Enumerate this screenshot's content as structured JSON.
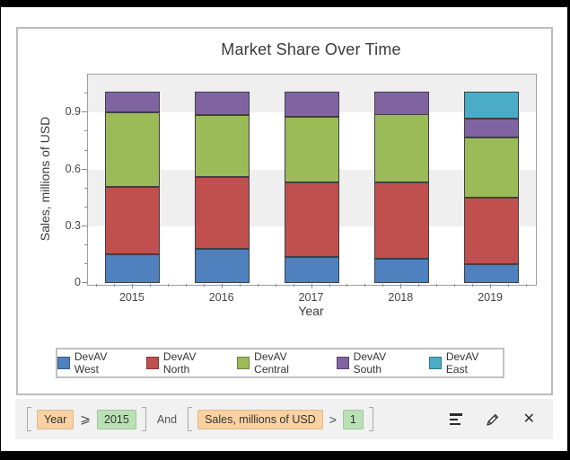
{
  "chart_data": {
    "type": "bar",
    "stacked": true,
    "title": "Market Share Over Time",
    "xlabel": "Year",
    "ylabel": "Sales, millions of USD",
    "categories": [
      "2015",
      "2016",
      "2017",
      "2018",
      "2019"
    ],
    "series": [
      {
        "name": "DevAV West",
        "color": "#4E81BD",
        "values": [
          0.15,
          0.18,
          0.14,
          0.13,
          0.1
        ]
      },
      {
        "name": "DevAV North",
        "color": "#C0504D",
        "values": [
          0.36,
          0.38,
          0.39,
          0.4,
          0.35
        ]
      },
      {
        "name": "DevAV Central",
        "color": "#9BBB59",
        "values": [
          0.39,
          0.33,
          0.35,
          0.36,
          0.32
        ]
      },
      {
        "name": "DevAV South",
        "color": "#8064A2",
        "values": [
          0.11,
          0.12,
          0.13,
          0.12,
          0.1
        ]
      },
      {
        "name": "DevAV East",
        "color": "#4BACC6",
        "values": [
          0,
          0,
          0,
          0,
          0.14
        ]
      }
    ],
    "y_tick_labels": [
      "0",
      "0.3",
      "0.6",
      "0.9"
    ],
    "ylim": [
      0,
      1.1
    ],
    "legend_position": "bottom",
    "grid": "banded"
  },
  "filter_bar": {
    "clauses": [
      {
        "field": "Year",
        "operator": "⩾",
        "value": "2015"
      },
      {
        "field": "Sales, millions of USD",
        "operator": ">",
        "value": "1"
      }
    ],
    "conjunction": "And",
    "close_glyph": "✕"
  },
  "colors": {
    "chip_field_bg": "#FAD2A2",
    "chip_value_bg": "#B9E1B4",
    "bar_outline": "#3F3F46",
    "plot_band_gray": "#EFEFEF",
    "panel_border": "#BCBCBC"
  }
}
